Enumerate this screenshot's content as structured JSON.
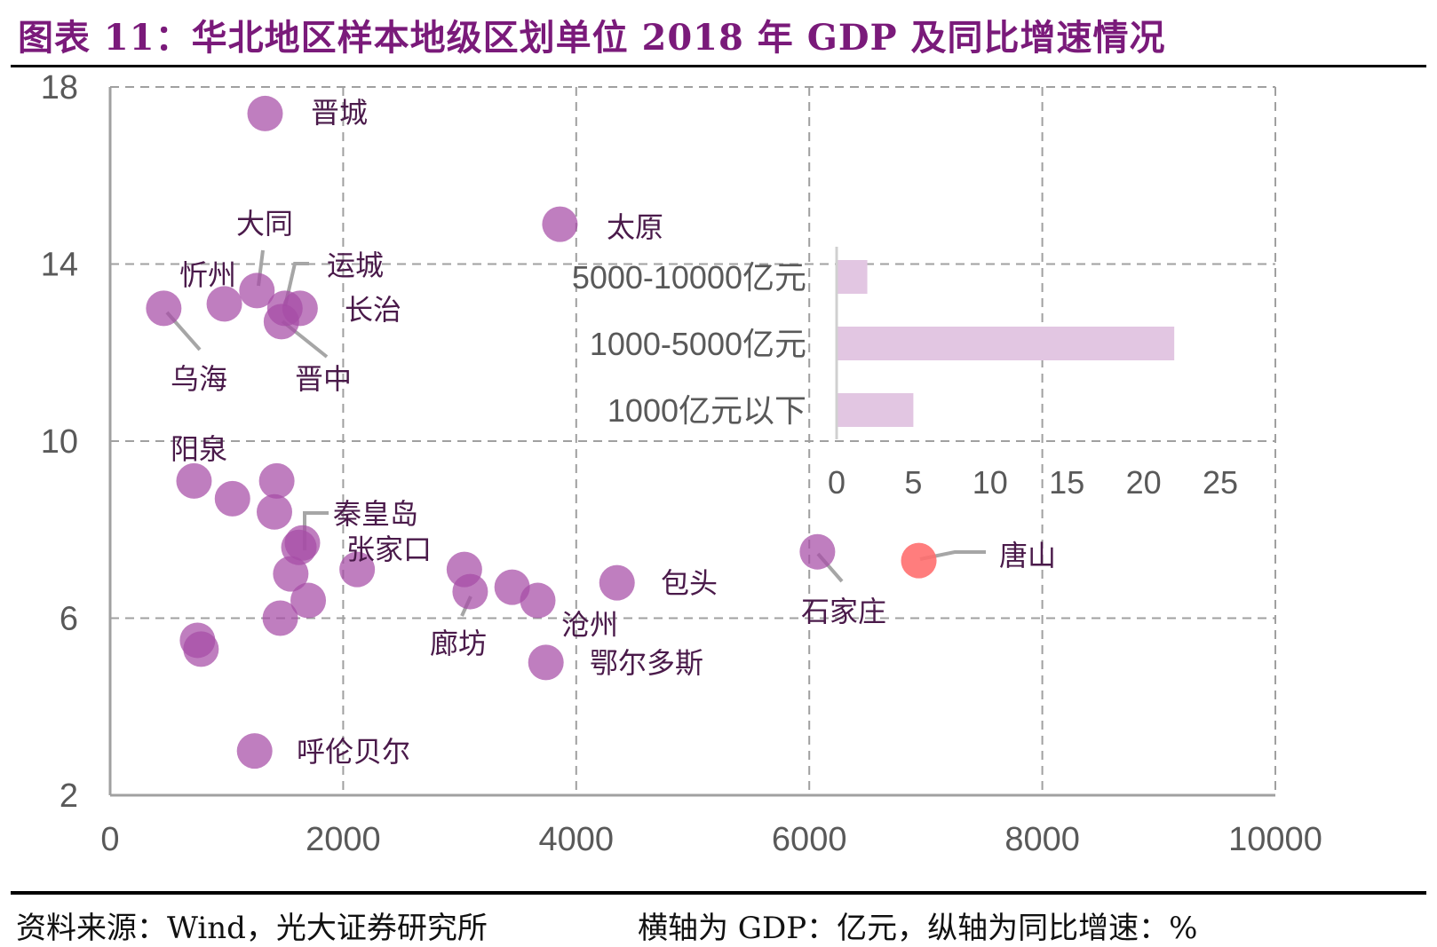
{
  "header": {
    "title": "图表 11：华北地区样本地级区划单位 2018 年 GDP 及同比增速情况"
  },
  "footer": {
    "source": "资料来源：Wind，光大证券研究所",
    "note": "横轴为 GDP：亿元，纵轴为同比增速：%"
  },
  "colors": {
    "title": "#7a1a7a",
    "point": "#a64ca6",
    "highlight_point": "#ff6f6f",
    "inset_bar": "#e2c6e2",
    "grid": "#a0a0a0",
    "leader": "#a6a6a6"
  },
  "chart_data": [
    {
      "type": "scatter",
      "title": "华北地区样本地级区划单位 2018 年 GDP 及同比增速情况",
      "xlabel": "GDP（亿元）",
      "ylabel": "同比增速（%）",
      "xlim": [
        0,
        10000
      ],
      "ylim": [
        2,
        18
      ],
      "xticks": [
        0,
        2000,
        4000,
        6000,
        8000,
        10000
      ],
      "yticks": [
        2,
        6,
        10,
        14,
        18
      ],
      "grid": true,
      "points": [
        {
          "name": "晋城",
          "x": 1330,
          "y": 17.4,
          "labeled": true
        },
        {
          "name": "太原",
          "x": 3860,
          "y": 14.9,
          "labeled": true
        },
        {
          "name": "大同",
          "x": 1260,
          "y": 13.4,
          "labeled": true
        },
        {
          "name": "忻州",
          "x": 980,
          "y": 13.1,
          "labeled": true
        },
        {
          "name": "乌海",
          "x": 460,
          "y": 13.0,
          "labeled": true
        },
        {
          "name": "运城",
          "x": 1500,
          "y": 13.0,
          "labeled": true
        },
        {
          "name": "长治",
          "x": 1630,
          "y": 13.0,
          "labeled": true
        },
        {
          "name": "晋中",
          "x": 1470,
          "y": 12.7,
          "labeled": true
        },
        {
          "name": "阳泉",
          "x": 720,
          "y": 9.1,
          "labeled": true
        },
        {
          "name": "",
          "x": 1050,
          "y": 8.7,
          "labeled": false
        },
        {
          "name": "",
          "x": 1430,
          "y": 9.1,
          "labeled": false
        },
        {
          "name": "",
          "x": 1410,
          "y": 8.4,
          "labeled": false
        },
        {
          "name": "秦皇岛",
          "x": 1650,
          "y": 7.7,
          "labeled": true
        },
        {
          "name": "张家口",
          "x": 1620,
          "y": 7.6,
          "labeled": true
        },
        {
          "name": "",
          "x": 1550,
          "y": 7.0,
          "labeled": false
        },
        {
          "name": "",
          "x": 1700,
          "y": 6.4,
          "labeled": false
        },
        {
          "name": "",
          "x": 1460,
          "y": 6.0,
          "labeled": false
        },
        {
          "name": "",
          "x": 2120,
          "y": 7.1,
          "labeled": false
        },
        {
          "name": "",
          "x": 750,
          "y": 5.5,
          "labeled": false
        },
        {
          "name": "",
          "x": 780,
          "y": 5.3,
          "labeled": false
        },
        {
          "name": "呼伦贝尔",
          "x": 1240,
          "y": 3.0,
          "labeled": true
        },
        {
          "name": "",
          "x": 3040,
          "y": 7.1,
          "labeled": false
        },
        {
          "name": "廊坊",
          "x": 3090,
          "y": 6.6,
          "labeled": true
        },
        {
          "name": "",
          "x": 3450,
          "y": 6.7,
          "labeled": false
        },
        {
          "name": "沧州",
          "x": 3670,
          "y": 6.4,
          "labeled": true
        },
        {
          "name": "鄂尔多斯",
          "x": 3740,
          "y": 5.0,
          "labeled": true
        },
        {
          "name": "包头",
          "x": 4350,
          "y": 6.8,
          "labeled": true
        },
        {
          "name": "石家庄",
          "x": 6070,
          "y": 7.5,
          "labeled": true
        },
        {
          "name": "唐山",
          "x": 6940,
          "y": 7.3,
          "labeled": true,
          "highlight": true
        }
      ]
    },
    {
      "type": "bar",
      "orientation": "horizontal",
      "title": "",
      "categories": [
        "5000-10000亿元",
        "1000-5000亿元",
        "1000亿元以下"
      ],
      "values": [
        2,
        22,
        5
      ],
      "xlim": [
        0,
        25
      ],
      "xticks": [
        0,
        5,
        10,
        15,
        20,
        25
      ],
      "legend": "none",
      "placement": "inset-top-right"
    }
  ]
}
